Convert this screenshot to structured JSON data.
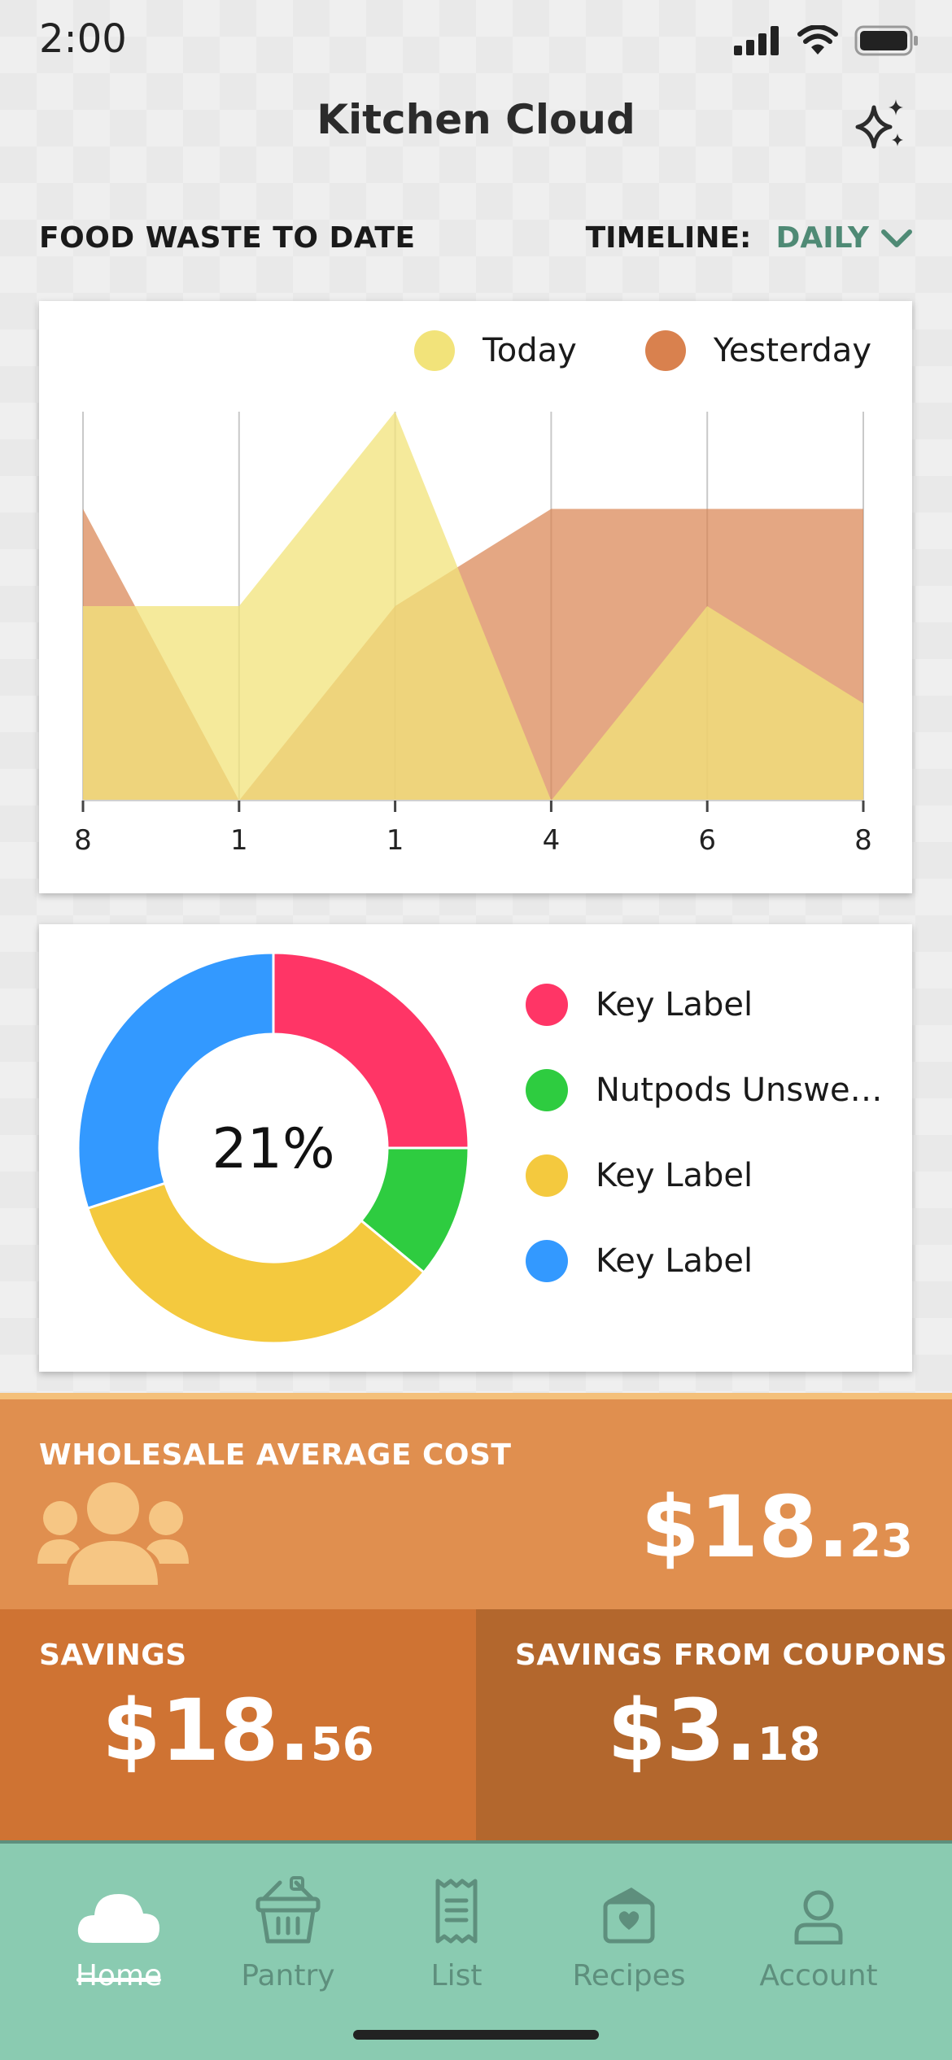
{
  "status_bar": {
    "time": "2:00"
  },
  "header": {
    "title": "Kitchen Cloud"
  },
  "section": {
    "title": "FOOD WASTE TO DATE",
    "timeline_label": "TIMELINE:",
    "timeline_value": "DAILY"
  },
  "chart_data": [
    {
      "type": "area",
      "x": [
        "8",
        "1",
        "1",
        "4",
        "6",
        "8"
      ],
      "series": [
        {
          "name": "Today",
          "color": "#f2e37a",
          "values": [
            2,
            2,
            4,
            0,
            2,
            1
          ]
        },
        {
          "name": "Yesterday",
          "color": "#d9814e",
          "values": [
            3,
            0,
            2,
            3,
            3,
            3
          ]
        }
      ],
      "ylim": [
        0,
        4
      ],
      "grid": "vertical",
      "legend": "top-right"
    },
    {
      "type": "pie",
      "center_label": "21%",
      "labels": [
        "Key Label",
        "Nutpods Unswe…",
        "Key Label",
        "Key Label"
      ],
      "values": [
        25,
        11,
        34,
        30
      ],
      "colors": [
        "#ff3566",
        "#2ecc40",
        "#f4c93e",
        "#3399ff"
      ],
      "legend": "right"
    }
  ],
  "stats": {
    "wholesale": {
      "label": "WHOLESALE AVERAGE COST",
      "major": "$18.",
      "minor": "23"
    },
    "savings": {
      "label": "SAVINGS",
      "major": "$18.",
      "minor": "56"
    },
    "coupons": {
      "label": "SAVINGS FROM COUPONS",
      "major": "$3.",
      "minor": "18"
    }
  },
  "tabs": [
    {
      "label": "Home",
      "icon": "cloud-icon",
      "active": true
    },
    {
      "label": "Pantry",
      "icon": "basket-icon"
    },
    {
      "label": "List",
      "icon": "receipt-icon"
    },
    {
      "label": "Recipes",
      "icon": "recipe-box-icon"
    },
    {
      "label": "Account",
      "icon": "user-icon"
    }
  ]
}
